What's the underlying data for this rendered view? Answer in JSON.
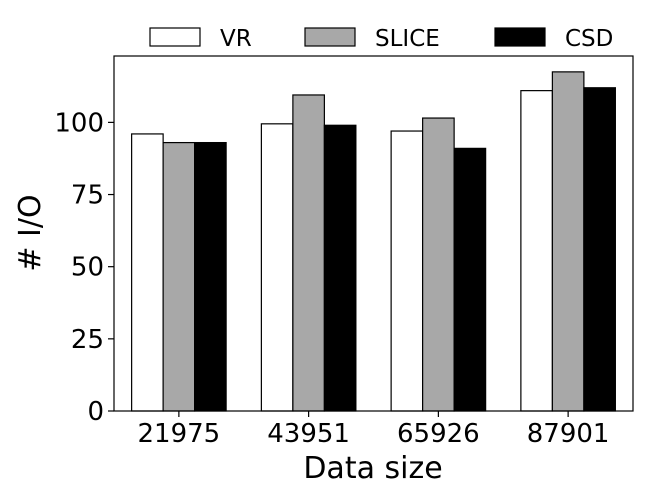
{
  "chart_data": {
    "type": "bar",
    "title": "",
    "xlabel": "Data size",
    "ylabel": "# I/O",
    "categories": [
      "21975",
      "43951",
      "65926",
      "87901"
    ],
    "series": [
      {
        "name": "VR",
        "color": "#ffffff",
        "values": [
          96,
          99.5,
          97,
          111
        ]
      },
      {
        "name": "SLICE",
        "color": "#a8a8a8",
        "values": [
          93,
          109.5,
          101.5,
          117.5
        ]
      },
      {
        "name": "CSD",
        "color": "#000000",
        "values": [
          93,
          99,
          91,
          112
        ]
      }
    ],
    "ylim": [
      0,
      123
    ],
    "yticks": [
      0,
      25,
      50,
      75,
      100
    ],
    "grid": false,
    "legend_position": "top"
  }
}
